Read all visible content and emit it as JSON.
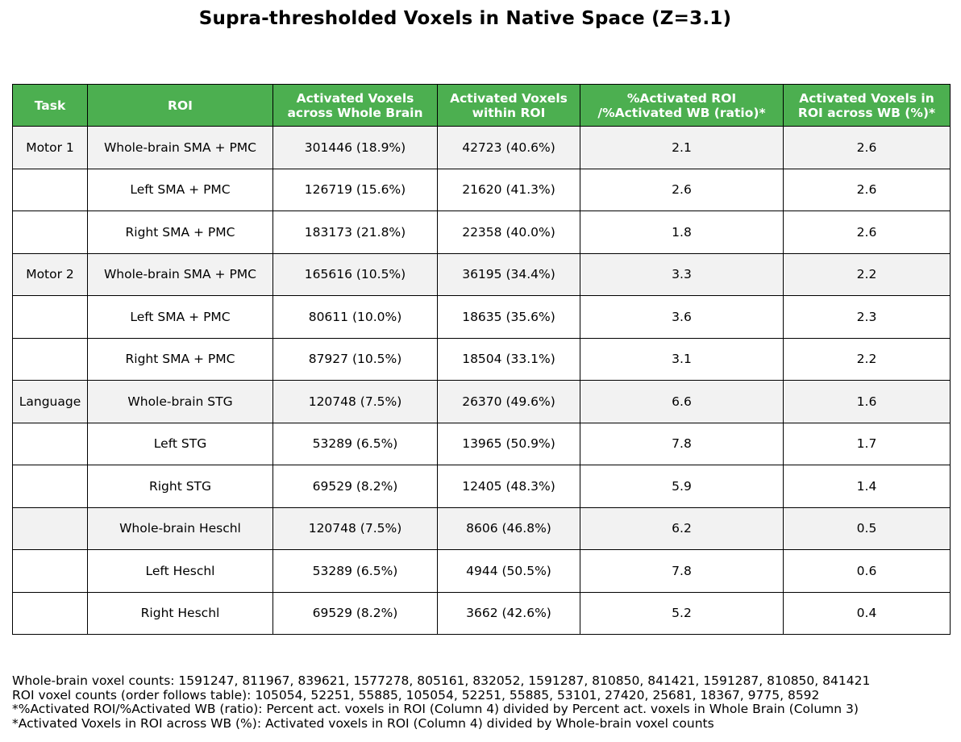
{
  "chart_data": {
    "type": "table",
    "title": "Supra-thresholded Voxels in Native Space (Z=3.1)",
    "columns": [
      "Task",
      "ROI",
      "Activated Voxels\nacross Whole Brain",
      "Activated Voxels\nwithin ROI",
      "%Activated ROI\n/%Activated WB (ratio)*",
      "Activated Voxels in\nROI across WB (%)*"
    ],
    "rows": [
      [
        "Motor 1",
        "Whole-brain SMA + PMC",
        "301446 (18.9%)",
        "42723 (40.6%)",
        "2.1",
        "2.6"
      ],
      [
        "",
        "Left SMA + PMC",
        "126719 (15.6%)",
        "21620 (41.3%)",
        "2.6",
        "2.6"
      ],
      [
        "",
        "Right SMA + PMC",
        "183173 (21.8%)",
        "22358 (40.0%)",
        "1.8",
        "2.6"
      ],
      [
        "Motor 2",
        "Whole-brain SMA + PMC",
        "165616 (10.5%)",
        "36195 (34.4%)",
        "3.3",
        "2.2"
      ],
      [
        "",
        "Left SMA + PMC",
        "80611 (10.0%)",
        "18635 (35.6%)",
        "3.6",
        "2.3"
      ],
      [
        "",
        "Right SMA + PMC",
        "87927 (10.5%)",
        "18504 (33.1%)",
        "3.1",
        "2.2"
      ],
      [
        "Language",
        "Whole-brain STG",
        "120748 (7.5%)",
        "26370 (49.6%)",
        "6.6",
        "1.6"
      ],
      [
        "",
        "Left STG",
        "53289 (6.5%)",
        "13965 (50.9%)",
        "7.8",
        "1.7"
      ],
      [
        "",
        "Right STG",
        "69529 (8.2%)",
        "12405 (48.3%)",
        "5.9",
        "1.4"
      ],
      [
        "",
        "Whole-brain Heschl",
        "120748 (7.5%)",
        "8606 (46.8%)",
        "6.2",
        "0.5"
      ],
      [
        "",
        "Left Heschl",
        "53289 (6.5%)",
        "4944 (50.5%)",
        "7.8",
        "0.6"
      ],
      [
        "",
        "Right Heschl",
        "69529 (8.2%)",
        "3662 (42.6%)",
        "5.2",
        "0.4"
      ]
    ],
    "shaded_rows": [
      0,
      3,
      6,
      9
    ],
    "notes": [
      "Whole-brain voxel counts: 1591247, 811967, 839621, 1577278, 805161, 832052, 1591287, 810850, 841421, 1591287, 810850, 841421",
      "ROI voxel counts (order follows table): 105054, 52251, 55885, 105054, 52251, 55885, 53101, 27420, 25681, 18367, 9775, 8592",
      "*%Activated ROI/%Activated WB (ratio): Percent act. voxels in ROI (Column 4) divided by Percent act. voxels in Whole Brain (Column 3)",
      "*Activated Voxels in ROI across WB (%): Activated voxels in ROI (Column 4) divided by Whole-brain voxel counts"
    ]
  },
  "colors": {
    "header_bg": "#4caf50",
    "header_text": "#ffffff",
    "shaded_row": "#f2f2f2"
  }
}
